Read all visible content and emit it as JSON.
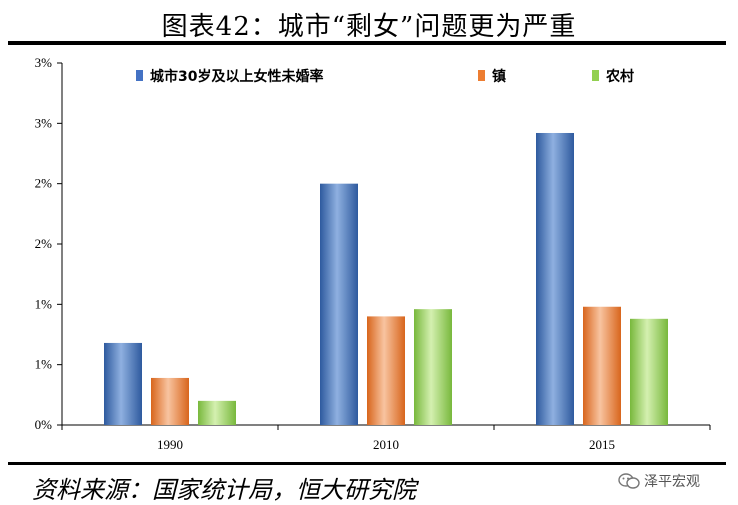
{
  "title": "图表42：城市“剩女”问题更为严重",
  "source": "资料来源：国家统计局，恒大研究院",
  "watermark": "泽平宏观",
  "colors": {
    "urban": "#4472c4",
    "town": "#ed7d31",
    "rural": "#92d050"
  },
  "chart_data": {
    "type": "bar",
    "categories": [
      "1990",
      "2010",
      "2015"
    ],
    "series": [
      {
        "name": "城市30岁及以上女性未婚率",
        "values": [
          0.68,
          2.0,
          2.42
        ]
      },
      {
        "name": "镇",
        "values": [
          0.39,
          0.9,
          0.98
        ]
      },
      {
        "name": "农村",
        "values": [
          0.2,
          0.96,
          0.88
        ]
      }
    ],
    "ylim": [
      0,
      3
    ],
    "yticks": [
      0,
      0.5,
      1,
      1.5,
      2,
      2.5,
      3
    ],
    "ytick_labels": [
      "0%",
      "1%",
      "1%",
      "2%",
      "2%",
      "3%",
      "3%"
    ],
    "grid": false,
    "legend": "top",
    "xlabel": "",
    "ylabel": ""
  }
}
